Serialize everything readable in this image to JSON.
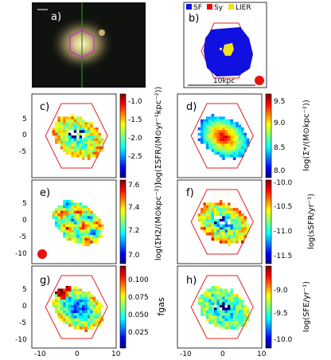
{
  "figure": {
    "panel_labels": [
      "a)",
      "b)",
      "c)",
      "d)",
      "e)",
      "f)",
      "g)",
      "h)"
    ],
    "legend_b": [
      {
        "label": "SF",
        "color": "#1010e0"
      },
      {
        "label": "Sy",
        "color": "#e01010"
      },
      {
        "label": "LIER",
        "color": "#f0e020"
      }
    ],
    "scalebar_label": "10kpc",
    "x_ticks": [
      "-10",
      "0",
      "10"
    ],
    "y_ticks": [
      "5",
      "0",
      "-5",
      "-10"
    ],
    "colorbars": {
      "c": {
        "ticks": [
          "-1.0",
          "-1.5",
          "-2.0",
          "-2.5"
        ],
        "label": "log(ΣSFR/(M⊙yr⁻¹kpc⁻²))"
      },
      "d": {
        "ticks": [
          "9.5",
          "9.0",
          "8.5",
          "8.0"
        ],
        "label": "log(Σ*/(M⊙kpc⁻²))"
      },
      "e": {
        "ticks": [
          "7.6",
          "7.4",
          "7.2",
          "7.0"
        ],
        "label": "log(ΣH2/(M⊙kpc⁻²))"
      },
      "f": {
        "ticks": [
          "-10.0",
          "-10.5",
          "-11.0",
          "-11.5"
        ],
        "label": "log(sSFR/yr⁻¹)"
      },
      "g": {
        "ticks": [
          "0.100",
          "0.075",
          "0.050",
          "0.025"
        ],
        "label": "fgas"
      },
      "h": {
        "ticks": [
          "-9.0",
          "-9.5",
          "-10.0"
        ],
        "label": "log(SFE/yr⁻¹)"
      }
    },
    "colors": {
      "hex_outline": "#e02020",
      "hex_outline_image": "#d020d0",
      "psf_dot": "#e81010",
      "background_image": "#101210"
    }
  }
}
